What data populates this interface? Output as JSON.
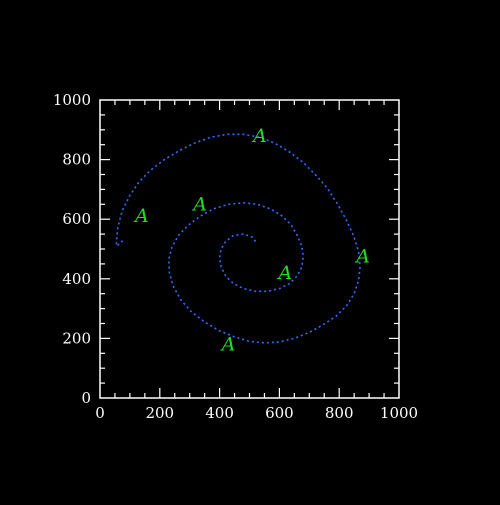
{
  "chart_data": {
    "type": "line",
    "title": "",
    "xlabel": "",
    "ylabel": "",
    "xlim": [
      0,
      1000
    ],
    "ylim": [
      0,
      1000
    ],
    "x_ticks": [
      "0",
      "200",
      "400",
      "600",
      "800",
      "1000"
    ],
    "y_ticks": [
      "0",
      "200",
      "400",
      "600",
      "800",
      "1000"
    ],
    "grid": false,
    "legend": "none",
    "series": [
      {
        "line_style": "dotted",
        "color": "#2e6fff",
        "description_shape": "spiral",
        "x": [
          520,
          510,
          480,
          445,
          420,
          405,
          400,
          405,
          420,
          445,
          480,
          520,
          560,
          600,
          635,
          660,
          675,
          680,
          675,
          660,
          640,
          610,
          570,
          525,
          480,
          430,
          380,
          335,
          295,
          262,
          240,
          230,
          232,
          245,
          270,
          305,
          350,
          400,
          450,
          500,
          550,
          600,
          650,
          700,
          745,
          790,
          825,
          850,
          865,
          870,
          865,
          850,
          825,
          795,
          760,
          720,
          680,
          635,
          585,
          535,
          480,
          425,
          370,
          315,
          265,
          215,
          170,
          130,
          100,
          75,
          60,
          55,
          55,
          62,
          78
        ],
        "y": [
          525,
          540,
          550,
          545,
          525,
          500,
          470,
          440,
          410,
          385,
          367,
          358,
          358,
          367,
          385,
          410,
          440,
          475,
          510,
          545,
          580,
          610,
          635,
          650,
          655,
          650,
          635,
          610,
          580,
          545,
          505,
          465,
          420,
          375,
          330,
          290,
          255,
          225,
          205,
          190,
          185,
          188,
          200,
          220,
          245,
          275,
          310,
          350,
          395,
          440,
          490,
          540,
          595,
          650,
          705,
          750,
          790,
          825,
          855,
          875,
          885,
          885,
          875,
          855,
          830,
          800,
          765,
          725,
          680,
          630,
          575,
          525,
          510,
          515,
          530
        ]
      }
    ],
    "annotations": [
      {
        "text": "A",
        "x": 880,
        "y": 475
      },
      {
        "text": "A",
        "x": 535,
        "y": 880
      },
      {
        "text": "A",
        "x": 430,
        "y": 180
      },
      {
        "text": "A",
        "x": 620,
        "y": 420
      },
      {
        "text": "A",
        "x": 335,
        "y": 650
      },
      {
        "text": "A",
        "x": 140,
        "y": 610
      }
    ],
    "colors": {
      "background": "#000000",
      "axis": "#ffffff",
      "series": "#2e6fff",
      "annotation": "#22dd22"
    }
  }
}
